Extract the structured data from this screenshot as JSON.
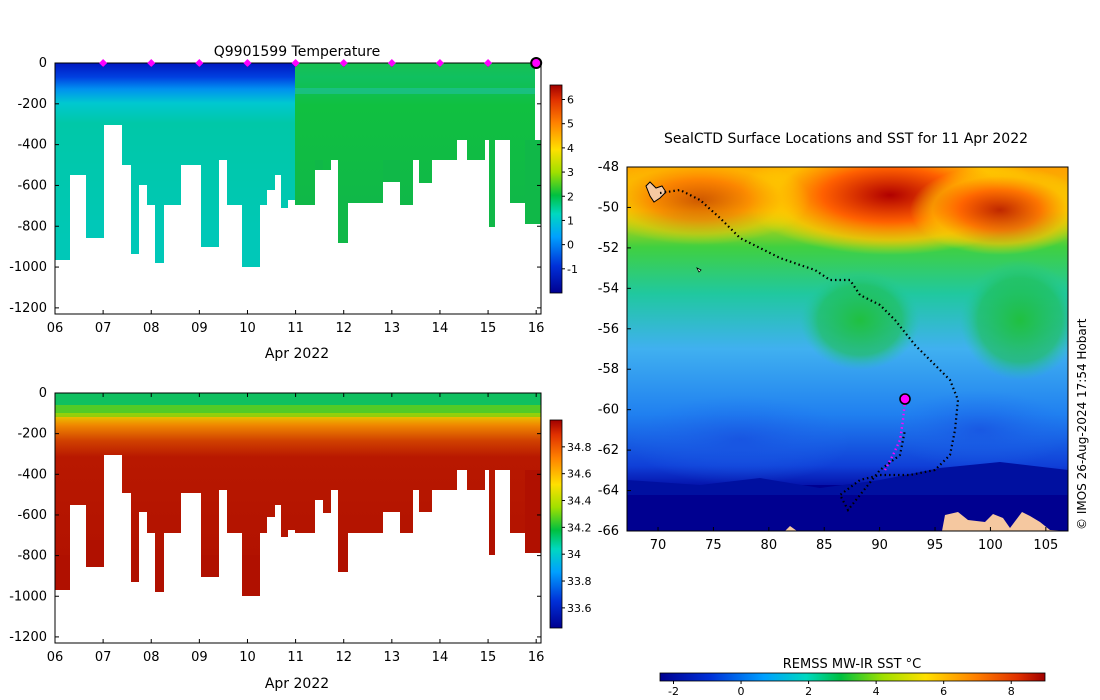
{
  "chart_data": [
    {
      "id": "temp_section",
      "type": "heatmap",
      "title": "Q9901599  Temperature",
      "xlabel": "Apr 2022",
      "x_ticks": [
        "06",
        "07",
        "08",
        "09",
        "10",
        "11",
        "12",
        "13",
        "14",
        "15",
        "16"
      ],
      "y_ticks": [
        0,
        -200,
        -400,
        -600,
        -800,
        -1000,
        -1200
      ],
      "xlim": [
        6,
        16.1
      ],
      "ylim": [
        -1230,
        0
      ],
      "profile_marker_days": [
        7,
        8,
        9,
        10,
        11,
        12,
        13,
        14,
        15
      ],
      "current_marker_day": 16,
      "colorbar": {
        "min": -2,
        "max": 6.6,
        "ticks": [
          -1,
          0,
          1,
          2,
          3,
          4,
          5,
          6
        ]
      },
      "colors": {
        "cold": "#000090",
        "warm": "#a30000",
        "marker": "#ff00ff"
      }
    },
    {
      "id": "sal_section",
      "type": "heatmap",
      "title": "",
      "xlabel": "Apr 2022",
      "x_ticks": [
        "06",
        "07",
        "08",
        "09",
        "10",
        "11",
        "12",
        "13",
        "14",
        "15",
        "16"
      ],
      "y_ticks": [
        0,
        -200,
        -400,
        -600,
        -800,
        -1000,
        -1200
      ],
      "xlim": [
        6,
        16.1
      ],
      "ylim": [
        -1230,
        0
      ],
      "colorbar": {
        "min": 33.45,
        "max": 35.0,
        "ticks": [
          33.6,
          33.8,
          34,
          34.2,
          34.4,
          34.6,
          34.8
        ]
      }
    },
    {
      "id": "sst_map",
      "type": "heatmap",
      "title": "SealCTD Surface Locations and SST for 11 Apr 2022",
      "x_ticks": [
        70,
        75,
        80,
        85,
        90,
        95,
        100,
        105
      ],
      "y_ticks": [
        -48,
        -50,
        -52,
        -54,
        -56,
        -58,
        -60,
        -62,
        -64,
        -66
      ],
      "xlim": [
        67.2,
        107
      ],
      "ylim": [
        -66,
        -48
      ],
      "current_position": {
        "lon": 92.3,
        "lat": -59.5
      },
      "colorbar": {
        "label": "REMSS MW-IR SST °C",
        "min": -2.4,
        "max": 9,
        "ticks": [
          -2,
          0,
          2,
          4,
          6,
          8
        ]
      },
      "credit": "© IMOS 26-Aug-2024 17:54 Hobart",
      "colors": {
        "land": "#f5c8a0",
        "track": "#000000",
        "recent_track": "#ff00ff"
      }
    }
  ]
}
